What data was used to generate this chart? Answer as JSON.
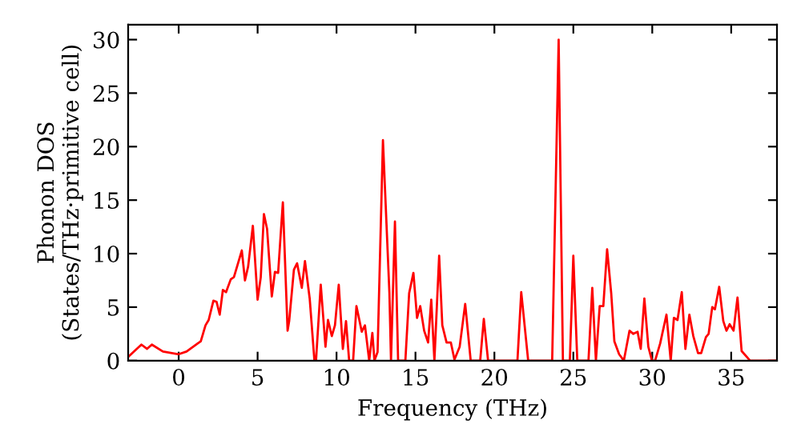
{
  "chart_data": {
    "type": "line",
    "xlabel": "Frequency (THz)",
    "ylabel": "Phonon DOS\n(States/THz·primitive cell)",
    "xlim": [
      -3.2,
      37.9
    ],
    "ylim": [
      0,
      31.4
    ],
    "xticks": [
      0,
      5,
      10,
      15,
      20,
      25,
      30,
      35
    ],
    "yticks": [
      0,
      5,
      10,
      15,
      20,
      25,
      30
    ],
    "grid": false,
    "legend": false,
    "marker": "none",
    "line_style": "solid",
    "series": [
      {
        "color": "#ff0000",
        "x": [
          -3.2,
          -2.36,
          -2.0,
          -1.7,
          -1.0,
          0,
          0.5,
          1.2,
          1.4,
          1.7,
          1.9,
          2.2,
          2.4,
          2.6,
          2.8,
          3.0,
          3.3,
          3.5,
          3.7,
          4.0,
          4.2,
          4.4,
          4.7,
          5.0,
          5.2,
          5.4,
          5.6,
          5.9,
          6.1,
          6.3,
          6.6,
          6.9,
          7.0,
          7.3,
          7.5,
          7.8,
          8.0,
          8.3,
          8.6,
          8.7,
          9.0,
          9.3,
          9.46,
          9.7,
          9.9,
          10.14,
          10.4,
          10.6,
          10.8,
          11.05,
          11.26,
          11.6,
          11.8,
          12.07,
          12.27,
          12.4,
          12.6,
          12.94,
          13.35,
          13.45,
          13.7,
          13.9,
          14.36,
          14.6,
          14.87,
          15.1,
          15.3,
          15.55,
          15.8,
          16.0,
          16.2,
          16.5,
          16.7,
          16.97,
          17.24,
          17.47,
          17.8,
          18.15,
          18.5,
          19.1,
          19.33,
          19.6,
          21.46,
          21.7,
          22.14,
          23.66,
          24.07,
          24.34,
          24.78,
          25.0,
          25.25,
          25.96,
          26.2,
          26.43,
          26.67,
          26.9,
          27.14,
          27.4,
          27.6,
          27.9,
          28.2,
          28.56,
          28.8,
          29.07,
          29.27,
          29.5,
          29.75,
          29.98,
          30.18,
          30.5,
          30.9,
          31.17,
          31.37,
          31.6,
          31.87,
          32.1,
          32.35,
          32.6,
          32.9,
          33.1,
          33.4,
          33.57,
          33.8,
          33.97,
          34.24,
          34.5,
          34.7,
          34.9,
          35.15,
          35.4,
          35.66,
          36.2,
          37.9
        ],
        "values": [
          0.35,
          1.5,
          1.1,
          1.5,
          0.85,
          0.6,
          0.85,
          1.6,
          1.8,
          3.3,
          3.8,
          5.6,
          5.5,
          4.3,
          6.6,
          6.4,
          7.6,
          7.8,
          8.8,
          10.3,
          7.5,
          8.8,
          12.6,
          5.7,
          7.8,
          13.7,
          12.3,
          6.0,
          8.3,
          8.2,
          14.8,
          2.8,
          3.7,
          8.5,
          9.1,
          6.8,
          9.3,
          5.8,
          0,
          0,
          7.1,
          1.3,
          3.8,
          2.3,
          3.3,
          7.1,
          1.1,
          3.7,
          0,
          0,
          5.1,
          2.7,
          3.3,
          0,
          2.6,
          0,
          0.8,
          20.6,
          6.3,
          0,
          13.0,
          0,
          0,
          6.3,
          8.2,
          4.0,
          5.1,
          2.8,
          1.7,
          5.7,
          0,
          9.8,
          3.3,
          1.7,
          1.7,
          0.1,
          1.3,
          5.3,
          0,
          0,
          3.9,
          0,
          0,
          6.4,
          0,
          0,
          30.0,
          0,
          0,
          9.8,
          0,
          0,
          6.8,
          0,
          5.1,
          5.1,
          10.4,
          6.3,
          1.8,
          0.6,
          0,
          2.8,
          2.5,
          2.7,
          1.1,
          5.8,
          1.3,
          0,
          0,
          1.6,
          4.3,
          0,
          4.0,
          3.8,
          6.4,
          1.1,
          4.3,
          2.3,
          0.7,
          0.7,
          2.2,
          2.5,
          5.0,
          4.8,
          6.9,
          3.7,
          2.8,
          3.4,
          2.8,
          5.9,
          0.9,
          0,
          0
        ]
      }
    ]
  }
}
